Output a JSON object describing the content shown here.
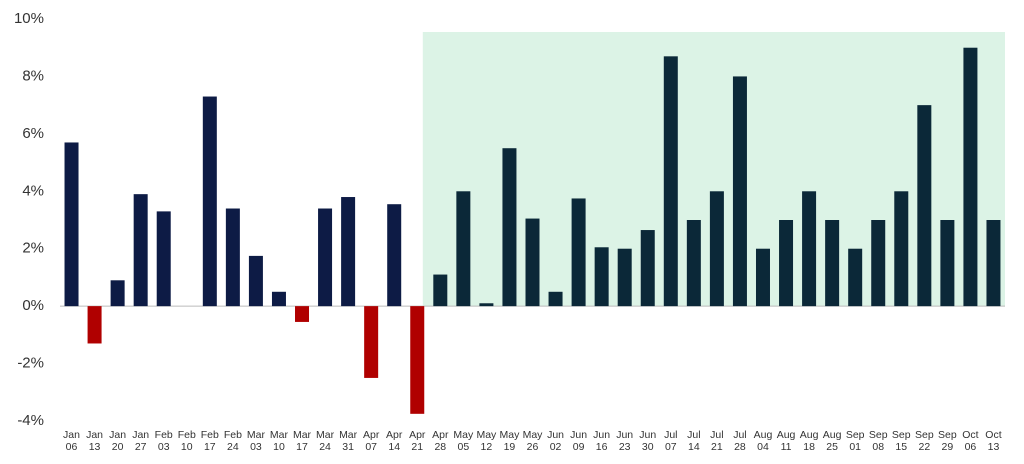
{
  "chart_data": {
    "type": "bar",
    "categories": [
      "Jan 06",
      "Jan 13",
      "Jan 20",
      "Jan 27",
      "Feb 03",
      "Feb 10",
      "Feb 17",
      "Feb 24",
      "Mar 03",
      "Mar 10",
      "Mar 17",
      "Mar 24",
      "Mar 31",
      "Apr 07",
      "Apr 14",
      "Apr 21",
      "Apr 28",
      "May 05",
      "May 12",
      "May 19",
      "May 26",
      "Jun 02",
      "Jun 09",
      "Jun 16",
      "Jun 23",
      "Jun 30",
      "Jul 07",
      "Jul 14",
      "Jul 21",
      "Jul 28",
      "Aug 04",
      "Aug 11",
      "Aug 18",
      "Aug 25",
      "Sep 01",
      "Sep 08",
      "Sep 15",
      "Sep 22",
      "Sep 29",
      "Oct 06",
      "Oct 13"
    ],
    "values": [
      5.7,
      -1.3,
      0.9,
      3.9,
      3.3,
      0,
      7.3,
      3.4,
      1.75,
      0.5,
      -0.55,
      3.4,
      3.8,
      -2.5,
      3.55,
      -3.75,
      1.1,
      4.0,
      0.1,
      5.5,
      3.05,
      0.5,
      3.75,
      2.05,
      2.0,
      2.65,
      8.7,
      3.0,
      4.0,
      8.0,
      2.0,
      3.0,
      4.0,
      3.0,
      2.0,
      3.0,
      4.0,
      7.0,
      3.0,
      9.0,
      3.0
    ],
    "color": "#0d1b45",
    "negative_color": "#b00000",
    "highlight": {
      "start": "Apr 28",
      "background": "#dcf3e6",
      "color": "#0b2838"
    },
    "ylim": [
      -4,
      10
    ],
    "yticks": [
      {
        "value": -4,
        "label": "-4%"
      },
      {
        "value": -2,
        "label": "-2%"
      },
      {
        "value": 0,
        "label": "0%"
      },
      {
        "value": 2,
        "label": "2%"
      },
      {
        "value": 4,
        "label": "4%"
      },
      {
        "value": 6,
        "label": "6%"
      },
      {
        "value": 8,
        "label": "8%"
      },
      {
        "value": 10,
        "label": "10%"
      }
    ],
    "grid": false
  }
}
